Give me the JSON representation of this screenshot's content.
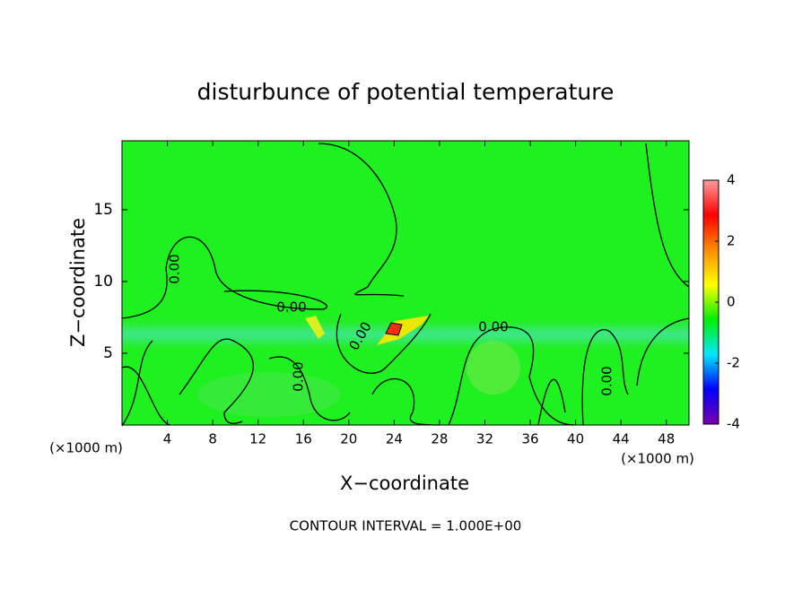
{
  "chart_data": {
    "type": "contour",
    "title": "disturbunce of potential temperature",
    "xlabel": "X−coordinate",
    "ylabel": "Z−coordinate",
    "x_unit": "(×1000 m)",
    "y_unit": "(×1000 m)",
    "xlim": [
      0,
      50
    ],
    "xticks": [
      4,
      8,
      12,
      16,
      20,
      24,
      28,
      32,
      36,
      40,
      44,
      48
    ],
    "ylim": [
      0,
      19.8
    ],
    "yticks": [
      5,
      10,
      15
    ],
    "contour_levels": [
      {
        "value": 0,
        "label": "0.00"
      }
    ],
    "colorbar": {
      "lim": [
        -4,
        4
      ],
      "ticks": [
        -4,
        -2,
        0,
        2,
        4
      ],
      "colors": [
        "#7a00a8",
        "#0000ff",
        "#00e8ff",
        "#00f000",
        "#ffff00",
        "#ff8c00",
        "#ff0000",
        "#ff9c9c"
      ]
    },
    "footer": "CONTOUR INTERVAL = 1.000E+00"
  }
}
